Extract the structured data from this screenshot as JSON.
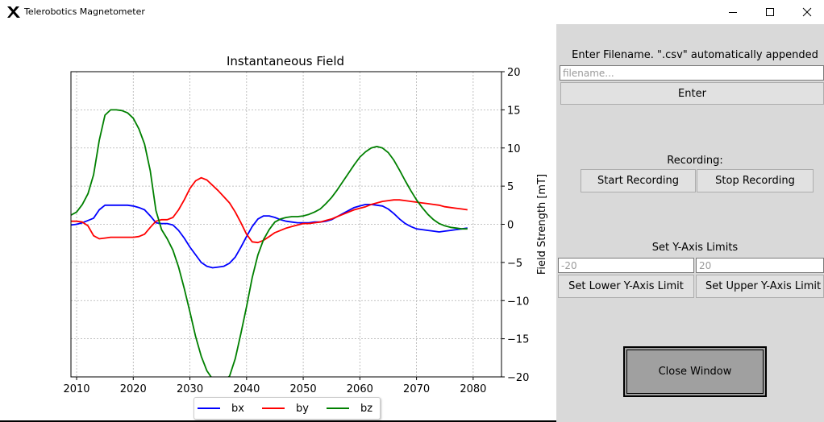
{
  "window": {
    "title": "Telerobotics Magnetometer",
    "icon": "x-logo-icon",
    "controls": [
      "minimize-icon",
      "maximize-icon",
      "close-icon"
    ]
  },
  "chart_data": {
    "type": "line",
    "title": "Instantaneous Field",
    "xlabel": "",
    "ylabel": "Field Strength [mT]",
    "xlim": [
      2009,
      2085
    ],
    "ylim": [
      -20,
      20
    ],
    "xticks": [
      2010,
      2020,
      2030,
      2040,
      2050,
      2060,
      2070,
      2080
    ],
    "yticks": [
      -20,
      -15,
      -10,
      -5,
      0,
      5,
      10,
      15,
      20
    ],
    "y_axis_side": "right",
    "grid": true,
    "legend_position": "bottom-center",
    "series": [
      {
        "name": "bx",
        "color": "#0000ff",
        "x": [
          2009,
          2010,
          2011,
          2012,
          2013,
          2014,
          2015,
          2016,
          2017,
          2018,
          2019,
          2020,
          2021,
          2022,
          2023,
          2024,
          2025,
          2026,
          2027,
          2028,
          2029,
          2030,
          2031,
          2032,
          2033,
          2034,
          2035,
          2036,
          2037,
          2038,
          2039,
          2040,
          2041,
          2042,
          2043,
          2044,
          2045,
          2046,
          2047,
          2048,
          2049,
          2050,
          2051,
          2052,
          2053,
          2054,
          2055,
          2056,
          2057,
          2058,
          2059,
          2060,
          2061,
          2062,
          2063,
          2064,
          2065,
          2066,
          2067,
          2068,
          2069,
          2070,
          2071,
          2072,
          2073,
          2074,
          2075,
          2076,
          2077,
          2078,
          2079
        ],
        "y": [
          -0.1,
          0.0,
          0.2,
          0.5,
          0.8,
          1.9,
          2.5,
          2.5,
          2.5,
          2.5,
          2.5,
          2.4,
          2.2,
          1.9,
          1.1,
          0.2,
          0.1,
          0.1,
          -0.1,
          -0.8,
          -1.8,
          -3.0,
          -4.0,
          -5.0,
          -5.5,
          -5.7,
          -5.6,
          -5.5,
          -5.1,
          -4.3,
          -3.0,
          -1.6,
          -0.3,
          0.7,
          1.1,
          1.1,
          0.9,
          0.6,
          0.4,
          0.3,
          0.2,
          0.2,
          0.2,
          0.3,
          0.3,
          0.4,
          0.6,
          1.0,
          1.4,
          1.8,
          2.2,
          2.4,
          2.6,
          2.6,
          2.5,
          2.4,
          2.0,
          1.4,
          0.7,
          0.1,
          -0.3,
          -0.6,
          -0.7,
          -0.8,
          -0.9,
          -1.0,
          -0.9,
          -0.8,
          -0.7,
          -0.6,
          -0.5
        ]
      },
      {
        "name": "by",
        "color": "#ff0000",
        "x": [
          2009,
          2010,
          2011,
          2012,
          2013,
          2014,
          2015,
          2016,
          2017,
          2018,
          2019,
          2020,
          2021,
          2022,
          2023,
          2024,
          2025,
          2026,
          2027,
          2028,
          2029,
          2030,
          2031,
          2032,
          2033,
          2034,
          2035,
          2036,
          2037,
          2038,
          2039,
          2040,
          2041,
          2042,
          2043,
          2044,
          2045,
          2046,
          2047,
          2048,
          2049,
          2050,
          2051,
          2052,
          2053,
          2054,
          2055,
          2056,
          2057,
          2058,
          2059,
          2060,
          2061,
          2062,
          2063,
          2064,
          2065,
          2066,
          2067,
          2068,
          2069,
          2070,
          2071,
          2072,
          2073,
          2074,
          2075,
          2076,
          2077,
          2078,
          2079
        ],
        "y": [
          0.4,
          0.4,
          0.3,
          -0.2,
          -1.5,
          -1.9,
          -1.8,
          -1.7,
          -1.7,
          -1.7,
          -1.7,
          -1.7,
          -1.6,
          -1.3,
          -0.4,
          0.4,
          0.6,
          0.6,
          0.9,
          1.9,
          3.2,
          4.7,
          5.7,
          6.1,
          5.8,
          5.1,
          4.4,
          3.6,
          2.8,
          1.6,
          0.2,
          -1.3,
          -2.3,
          -2.4,
          -2.1,
          -1.6,
          -1.1,
          -0.8,
          -0.5,
          -0.3,
          -0.1,
          0.1,
          0.1,
          0.2,
          0.3,
          0.5,
          0.7,
          1.0,
          1.3,
          1.6,
          1.9,
          2.1,
          2.3,
          2.6,
          2.8,
          3.0,
          3.1,
          3.2,
          3.2,
          3.1,
          3.0,
          2.9,
          2.8,
          2.7,
          2.6,
          2.5,
          2.3,
          2.2,
          2.1,
          2.0,
          1.9
        ]
      },
      {
        "name": "bz",
        "color": "#008000",
        "x": [
          2009,
          2010,
          2011,
          2012,
          2013,
          2014,
          2015,
          2016,
          2017,
          2018,
          2019,
          2020,
          2021,
          2022,
          2023,
          2024,
          2025,
          2026,
          2027,
          2028,
          2029,
          2030,
          2031,
          2032,
          2033,
          2034,
          2035,
          2036,
          2037,
          2038,
          2039,
          2040,
          2041,
          2042,
          2043,
          2044,
          2045,
          2046,
          2047,
          2048,
          2049,
          2050,
          2051,
          2052,
          2053,
          2054,
          2055,
          2056,
          2057,
          2058,
          2059,
          2060,
          2061,
          2062,
          2063,
          2064,
          2065,
          2066,
          2067,
          2068,
          2069,
          2070,
          2071,
          2072,
          2073,
          2074,
          2075,
          2076,
          2077,
          2078,
          2079
        ],
        "y": [
          1.2,
          1.6,
          2.6,
          4.0,
          6.5,
          11.0,
          14.3,
          15.0,
          15.0,
          14.9,
          14.6,
          13.9,
          12.5,
          10.5,
          7.0,
          1.8,
          -0.7,
          -1.9,
          -3.4,
          -5.6,
          -8.4,
          -11.5,
          -14.7,
          -17.3,
          -19.2,
          -20.3,
          -20.6,
          -20.5,
          -19.9,
          -17.6,
          -14.3,
          -10.8,
          -7.0,
          -4.0,
          -2.0,
          -0.7,
          0.3,
          0.7,
          0.9,
          1.0,
          1.0,
          1.1,
          1.3,
          1.6,
          2.0,
          2.7,
          3.5,
          4.5,
          5.6,
          6.7,
          7.8,
          8.8,
          9.5,
          10.0,
          10.2,
          10.0,
          9.4,
          8.4,
          7.1,
          5.7,
          4.4,
          3.2,
          2.2,
          1.3,
          0.6,
          0.1,
          -0.2,
          -0.4,
          -0.5,
          -0.6,
          -0.6
        ]
      }
    ]
  },
  "panel": {
    "filename_label": "Enter Filename. \".csv\" automatically appended",
    "filename_placeholder": "filename...",
    "enter_button": "Enter",
    "recording_label": "Recording:",
    "start_recording": "Start Recording",
    "stop_recording": "Stop Recording",
    "ylimits_label": "Set Y-Axis Limits",
    "lower_limit_value": "-20",
    "upper_limit_value": "20",
    "set_lower_button": "Set Lower Y-Axis Limit",
    "set_upper_button": "Set Upper Y-Axis Limit",
    "close_button": "Close Window"
  }
}
